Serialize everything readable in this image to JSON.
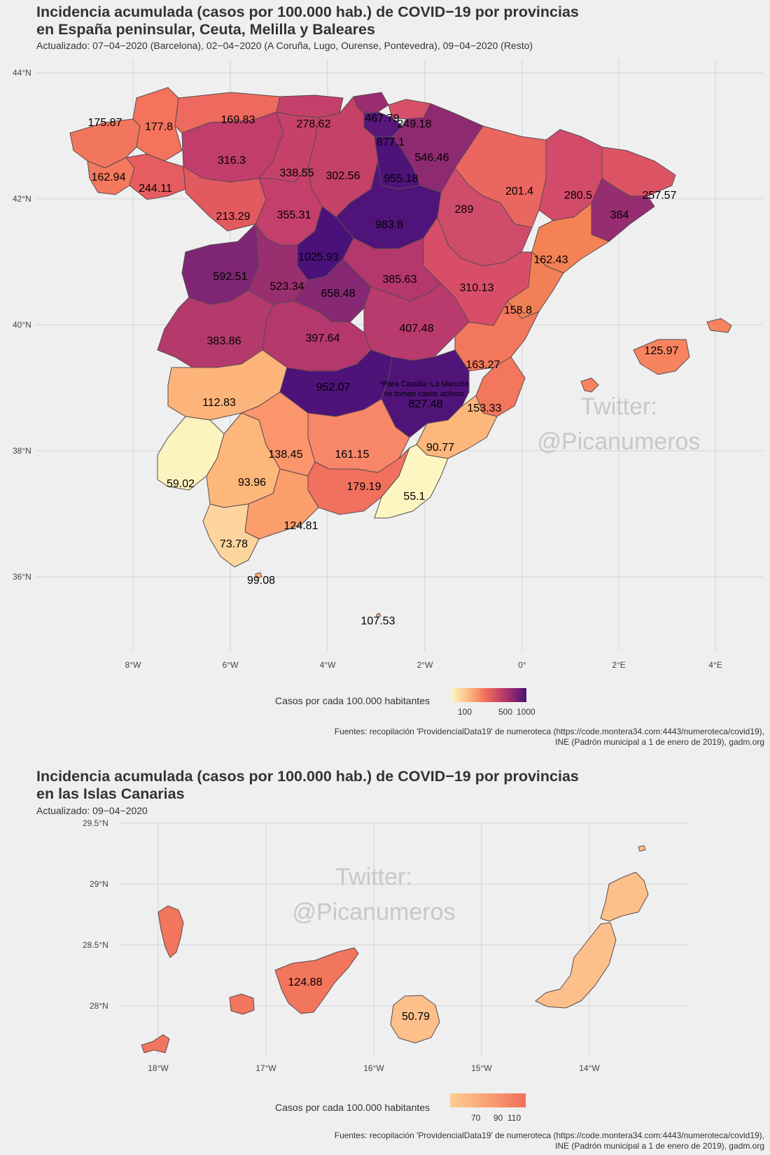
{
  "top": {
    "title_line1": "Incidencia acumulada (casos por 100.000 hab.) de COVID−19 por provincias",
    "title_line2": "en España peninsular, Ceuta, Melilla y Baleares",
    "subtitle": "Actualizado: 07−04−2020 (Barcelona), 02−04−2020 (A Coruña, Lugo, Ourense, Pontevedra), 09−04−2020 (Resto)",
    "lat_labels": [
      "44°N",
      "42°N",
      "40°N",
      "38°N",
      "36°N"
    ],
    "lon_labels": [
      "8°W",
      "6°W",
      "4°W",
      "2°W",
      "0°",
      "2°E",
      "4°E"
    ],
    "watermark_line1": "Twitter:",
    "watermark_line2": "@Picanumeros",
    "note_line1": "*Para Castilla−La Mancha",
    "note_line2": "se toman casos activos",
    "legend_title": "Casos por cada 100.000 habitantes",
    "legend_ticks": [
      "100",
      "500",
      "1000"
    ],
    "source_line1": "Fuentes: recopilación 'ProvidencialData19' de numeroteca (https://code.montera34.com:4443/numeroteca/covid19),",
    "source_line2": "INE (Padrón municipal a 1 de enero de 2019), gadm.org",
    "values": [
      "175.87",
      "177.8",
      "169.83",
      "278.62",
      "467.79",
      "249.18",
      "877.1",
      "546.46",
      "316.3",
      "338.55",
      "302.56",
      "955.18",
      "162.94",
      "244.11",
      "201.4",
      "280.5",
      "257.57",
      "213.29",
      "355.31",
      "983.8",
      "289",
      "384",
      "1025.93",
      "162.43",
      "592.51",
      "523.34",
      "385.63",
      "658.48",
      "310.13",
      "158.8",
      "407.48",
      "383.86",
      "397.64",
      "125.97",
      "163.27",
      "952.07",
      "827.48",
      "112.83",
      "153.33",
      "90.77",
      "138.45",
      "161.15",
      "59.02",
      "93.96",
      "179.19",
      "55.1",
      "124.81",
      "73.78",
      "99.08",
      "107.53"
    ]
  },
  "bottom": {
    "title_line1": "Incidencia acumulada (casos por 100.000 hab.) de COVID−19 por provincias",
    "title_line2": "en las Islas Canarias",
    "subtitle": "Actualizado: 09−04−2020",
    "lat_labels": [
      "29.5°N",
      "29°N",
      "28.5°N",
      "28°N"
    ],
    "lon_labels": [
      "18°W",
      "17°W",
      "16°W",
      "15°W",
      "14°W"
    ],
    "watermark_line1": "Twitter:",
    "watermark_line2": "@Picanumeros",
    "values": [
      "124.88",
      "50.79"
    ],
    "legend_title": "Casos por cada 100.000 habitantes",
    "legend_ticks": [
      "70",
      "90",
      "110"
    ],
    "source_line1": "Fuentes: recopilación 'ProvidencialData19' de numeroteca (https://code.montera34.com:4443/numeroteca/covid19),",
    "source_line2": "INE (Padrón municipal a 1 de enero de 2019), gadm.org"
  },
  "colors": {
    "scale_low": "#fcf4bd",
    "scale_mid_low": "#fbb27a",
    "scale_mid": "#f06d5a",
    "scale_mid_high": "#b8386a",
    "scale_high": "#4a1173"
  }
}
